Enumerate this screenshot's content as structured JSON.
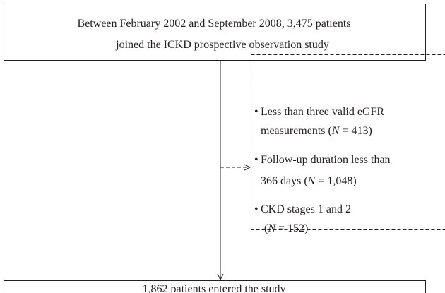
{
  "top_box": {
    "lines": [
      "Between February 2002 and September 2008, 3,475 patients",
      "joined the ICKD prospective observation study"
    ]
  },
  "exclusions": [
    {
      "lines": [
        [
          "Less than three valid eGFR"
        ],
        [
          "measurements (",
          "N",
          " = 413)"
        ]
      ]
    },
    {
      "lines": [
        [
          "Follow-up duration less than"
        ],
        [
          "366 days (",
          "N",
          " = 1,048)"
        ]
      ]
    },
    {
      "lines": [
        [
          "CKD stages 1 and 2"
        ],
        [
          "(",
          "N",
          " = 152)"
        ]
      ]
    }
  ],
  "bottom_box": {
    "text": "1,862 patients entered the study"
  }
}
